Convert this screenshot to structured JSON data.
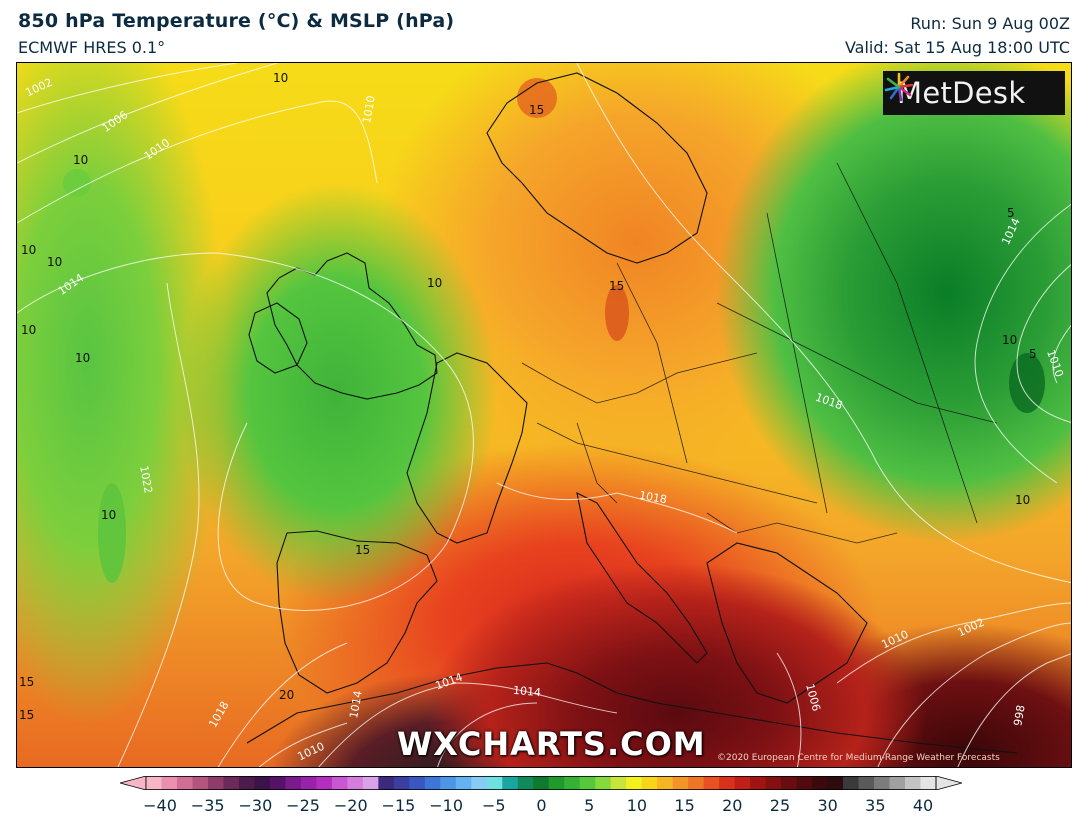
{
  "header": {
    "title": "850 hPa Temperature (°C) & MSLP (hPa)",
    "subtitle": "ECMWF HRES 0.1°",
    "run": "Run: Sun 9 Aug 00Z",
    "valid": "Valid: Sat 15 Aug 18:00 UTC"
  },
  "logo": {
    "text": "MetDesk"
  },
  "watermark": "WXCHARTS.COM",
  "copyright": "©2020 European Centre for Medium-Range Weather Forecasts",
  "colorbar": {
    "ticks": [
      "−40",
      "−35",
      "−30",
      "−25",
      "−20",
      "−15",
      "−10",
      "−5",
      "0",
      "5",
      "10",
      "15",
      "20",
      "25",
      "30",
      "35",
      "40"
    ],
    "colors": [
      "#f7b6c8",
      "#eb8fae",
      "#d26d94",
      "#b4557e",
      "#8f3c6a",
      "#6c2a58",
      "#4c1d4c",
      "#3a1448",
      "#551267",
      "#7a1a8c",
      "#9a22a8",
      "#b42ec0",
      "#c957d2",
      "#d57ddd",
      "#d9a1e6",
      "#3c2b7c",
      "#3b3fa0",
      "#3a56c0",
      "#3d76d8",
      "#4d95e6",
      "#64b2f0",
      "#86ccf5",
      "#6fe0e0",
      "#1aa6a0",
      "#0f8a5a",
      "#0d7a30",
      "#1f9a2c",
      "#35b235",
      "#56c83c",
      "#86d93a",
      "#c8e63a",
      "#f3f01e",
      "#f8d51b",
      "#f6b522",
      "#f39526",
      "#ef7625",
      "#e85222",
      "#d8321c",
      "#c01f18",
      "#a01514",
      "#841012",
      "#6a0c10",
      "#510a0e",
      "#3c0a0c",
      "#2c0c0e",
      "#3a3a3a",
      "#5a5a5a",
      "#7c7c7c",
      "#a0a0a0",
      "#c4c4c4",
      "#e4e4e4"
    ]
  },
  "map_labels": {
    "temp": [
      "10",
      "10",
      "10",
      "10",
      "10",
      "10",
      "10",
      "10",
      "10",
      "10",
      "15",
      "15",
      "15",
      "15",
      "15",
      "20",
      "5",
      "5"
    ],
    "isobar": [
      "1002",
      "1006",
      "1010",
      "1014",
      "1010",
      "1014",
      "1018",
      "1022",
      "1018",
      "1014",
      "1014",
      "1014",
      "1010",
      "1018",
      "1014",
      "1010",
      "1006",
      "1002",
      "1010",
      "998"
    ]
  }
}
